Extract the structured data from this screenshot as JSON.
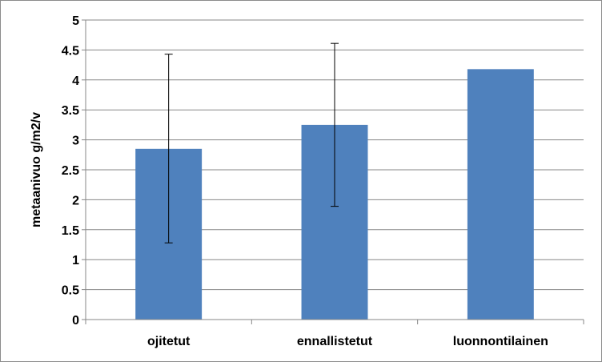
{
  "chart_data": {
    "type": "bar",
    "title": "",
    "xlabel": "",
    "ylabel": "metaanivuo g/m2/v",
    "ylim": [
      0,
      5
    ],
    "yticks": [
      0,
      0.5,
      1,
      1.5,
      2,
      2.5,
      3,
      3.5,
      4,
      4.5,
      5
    ],
    "ytick_labels": [
      "0",
      "0.5",
      "1",
      "1.5",
      "2",
      "2.5",
      "3",
      "3.5",
      "4",
      "4.5",
      "5"
    ],
    "categories": [
      "ojitetut",
      "ennallistetut",
      "luonnontilainen"
    ],
    "values": [
      2.85,
      3.25,
      4.18
    ],
    "error_low": [
      1.28,
      1.89,
      null
    ],
    "error_high": [
      4.43,
      4.61,
      null
    ],
    "grid": true,
    "legend": "none",
    "colors": {
      "bar": "#4f81bd",
      "grid": "#878787",
      "axis": "#878787",
      "error_bar": "#000000"
    }
  }
}
